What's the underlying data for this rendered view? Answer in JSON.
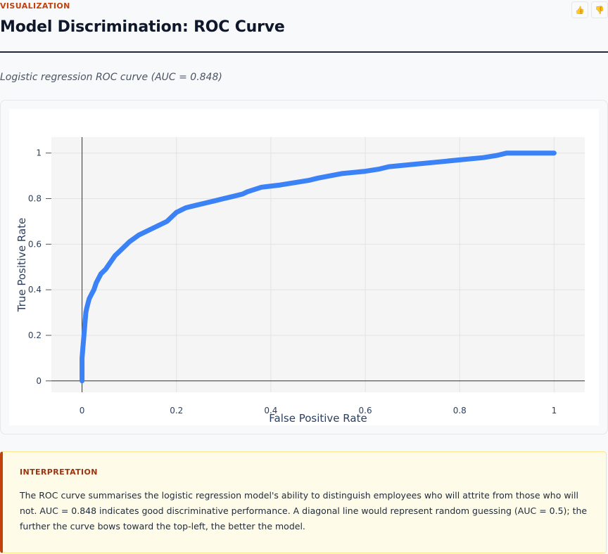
{
  "header": {
    "eyebrow": "VISUALIZATION",
    "title": "Model Discrimination: ROC Curve",
    "feedback": {
      "up_icon": "thumbs-up-icon",
      "down_icon": "thumbs-down-icon"
    }
  },
  "subtitle": "Logistic regression ROC curve (AUC = 0.848)",
  "chart_data": {
    "type": "line",
    "title": "",
    "xlabel": "False Positive Rate",
    "ylabel": "True Positive Rate",
    "xlim": [
      -0.065,
      1.065
    ],
    "ylim": [
      -0.05,
      1.07
    ],
    "xticks": [
      0,
      0.2,
      0.4,
      0.6,
      0.8,
      1
    ],
    "xtick_labels": [
      "0",
      "0.2",
      "0.4",
      "0.6",
      "0.8",
      "1"
    ],
    "yticks": [
      0,
      0.2,
      0.4,
      0.6,
      0.8,
      1
    ],
    "ytick_labels": [
      "0",
      "0.2",
      "0.4",
      "0.6",
      "0.8",
      "1"
    ],
    "grid": true,
    "line_color": "#3b82f6",
    "series": [
      {
        "x": [
          0,
          0,
          0.002,
          0.004,
          0.006,
          0.008,
          0.01,
          0.015,
          0.02,
          0.025,
          0.03,
          0.035,
          0.04,
          0.05,
          0.06,
          0.07,
          0.08,
          0.09,
          0.1,
          0.12,
          0.14,
          0.16,
          0.18,
          0.19,
          0.2,
          0.22,
          0.24,
          0.26,
          0.28,
          0.3,
          0.32,
          0.34,
          0.35,
          0.38,
          0.42,
          0.45,
          0.48,
          0.5,
          0.55,
          0.6,
          0.63,
          0.65,
          0.7,
          0.75,
          0.8,
          0.85,
          0.88,
          0.9,
          0.95,
          1.0
        ],
        "y": [
          0,
          0.1,
          0.15,
          0.2,
          0.25,
          0.3,
          0.32,
          0.36,
          0.38,
          0.4,
          0.43,
          0.45,
          0.47,
          0.49,
          0.52,
          0.55,
          0.57,
          0.59,
          0.61,
          0.64,
          0.66,
          0.68,
          0.7,
          0.72,
          0.74,
          0.76,
          0.77,
          0.78,
          0.79,
          0.8,
          0.81,
          0.82,
          0.83,
          0.85,
          0.86,
          0.87,
          0.88,
          0.89,
          0.91,
          0.92,
          0.93,
          0.94,
          0.95,
          0.96,
          0.97,
          0.98,
          0.99,
          1.0,
          1.0,
          1.0
        ]
      }
    ]
  },
  "interpretation": {
    "label": "INTERPRETATION",
    "text": "The ROC curve summarises the logistic regression model's ability to distinguish employees who will attrite from those who will not. AUC = 0.848 indicates good discriminative performance. A diagonal line would represent random guessing (AUC = 0.5); the further the curve bows toward the top-left, the better the model."
  }
}
